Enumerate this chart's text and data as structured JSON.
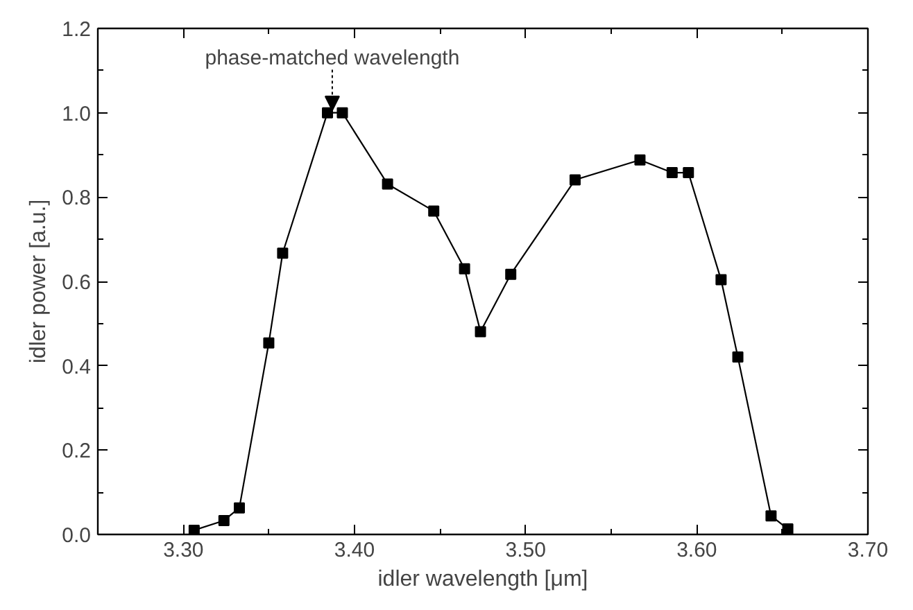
{
  "chart_data": {
    "type": "line",
    "xlabel": "idler wavelength [μm]",
    "ylabel": "idler power [a.u.]",
    "x": [
      3.3063,
      3.3237,
      3.3327,
      3.3499,
      3.358,
      3.3842,
      3.3929,
      3.4193,
      3.4463,
      3.4643,
      3.4736,
      3.4913,
      3.5289,
      3.5668,
      3.5856,
      3.5951,
      3.6142,
      3.624,
      3.6434,
      3.6532
    ],
    "series": [
      {
        "color": "#000000",
        "values": [
          0.01,
          0.033,
          0.063,
          0.454,
          0.667,
          1.0,
          1.0,
          0.831,
          0.767,
          0.63,
          0.481,
          0.617,
          0.841,
          0.888,
          0.858,
          0.858,
          0.604,
          0.421,
          0.044,
          0.013
        ]
      }
    ],
    "xlim": [
      3.25,
      3.7
    ],
    "ylim": [
      0.0,
      1.2
    ],
    "xticks": [
      {
        "value": 3.3,
        "label": "3.30"
      },
      {
        "value": 3.4,
        "label": "3.40"
      },
      {
        "value": 3.5,
        "label": "3.50"
      },
      {
        "value": 3.6,
        "label": "3.60"
      },
      {
        "value": 3.7,
        "label": "3.70"
      }
    ],
    "yticks": [
      {
        "value": 0.0,
        "label": "0.0"
      },
      {
        "value": 0.2,
        "label": "0.2"
      },
      {
        "value": 0.4,
        "label": "0.4"
      },
      {
        "value": 0.6,
        "label": "0.6"
      },
      {
        "value": 0.8,
        "label": "0.8"
      },
      {
        "value": 1.0,
        "label": "1.0"
      },
      {
        "value": 1.2,
        "label": "1.2"
      }
    ],
    "annotations": [
      {
        "text": "phase-matched wavelength",
        "x": 3.387,
        "y": 1.0
      }
    ],
    "grid": false,
    "marker": "square",
    "line_style": "solid"
  }
}
